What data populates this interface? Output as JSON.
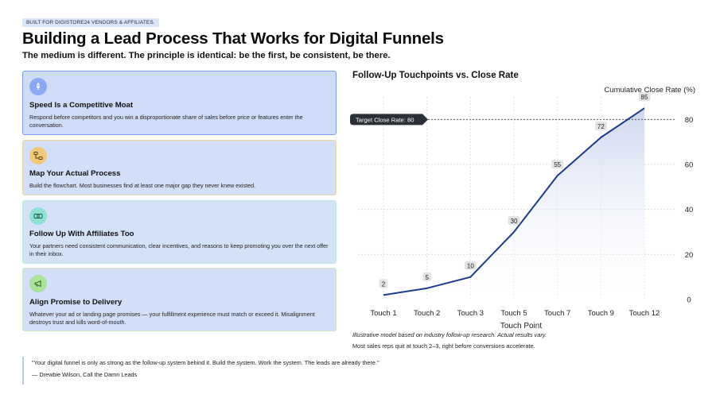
{
  "header": {
    "badge": "BUILT FOR DIGISTORE24 VENDORS & AFFILIATES.",
    "title": "Building a Lead Process That Works for Digital Funnels",
    "subtitle": "The medium is different. The principle is identical: be the first, be consistent, be there."
  },
  "cards": [
    {
      "icon": "rocket-icon",
      "accent": "#8aa9f2",
      "title": "Speed Is a Competitive Moat",
      "desc": "Respond before competitors and you win a disproportionate share of sales before price or features enter the conversation."
    },
    {
      "icon": "flowchart-icon",
      "accent": "#f2c77a",
      "title": "Map Your Actual Process",
      "desc": "Build the flowchart. Most businesses find at least one major gap they never knew existed."
    },
    {
      "icon": "handshake-icon",
      "accent": "#8fe0d2",
      "title": "Follow Up With Affiliates Too",
      "desc": "Your partners need consistent communication, clear incentives, and reasons to keep promoting you over the next offer in their inbox."
    },
    {
      "icon": "megaphone-icon",
      "accent": "#a9e39a",
      "title": "Align Promise to Delivery",
      "desc": "Whatever your ad or landing page promises — your fulfillment experience must match or exceed it. Misalignment destroys trust and kills word-of-mouth."
    }
  ],
  "quote": {
    "text": "\"Your digital funnel is only as strong as the follow-up system behind it. Build the system. Work the system. The leads are already there.\"",
    "author": "— Drewbie Wilson, Call the Damn Leads"
  },
  "chart_data": {
    "type": "line",
    "title": "Follow-Up Touchpoints vs. Close Rate",
    "xlabel": "Touch Point",
    "ylabel": "Cumulative Close Rate (%)",
    "categories": [
      "Touch 1",
      "Touch 2",
      "Touch 3",
      "Touch 5",
      "Touch 7",
      "Touch 9",
      "Touch 12"
    ],
    "values": [
      2,
      5,
      10,
      30,
      55,
      72,
      85
    ],
    "ylim": [
      0,
      90
    ],
    "yticks": [
      0,
      20,
      40,
      60,
      80
    ],
    "y_axis_side": "right",
    "grid": true,
    "line_color": "#1e3a8a",
    "target": {
      "value": 80,
      "label": "Target Close Rate: 80"
    },
    "note": "Illustrative model based on industry follow-up research. Actual results vary.",
    "footnote": "Most sales reps quit at touch 2–3, right before conversions accelerate."
  }
}
